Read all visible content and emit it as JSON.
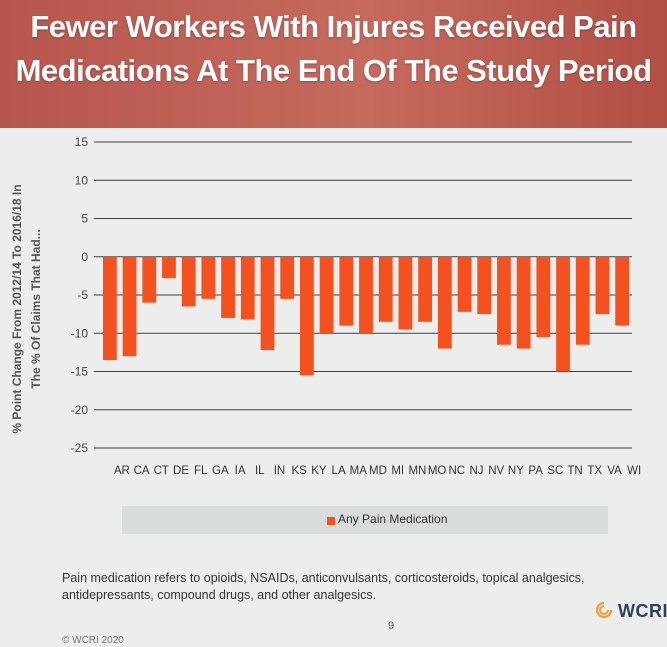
{
  "title": {
    "line1": "Fewer Workers With Injures Received Pain",
    "line2": "Medications At The End Of The Study Period"
  },
  "chart_data": {
    "type": "bar",
    "ylabel_line1": "% Point Change From 2012/14 To 2016/18 In",
    "ylabel_line2": "The % Of Claims That Had...",
    "ylim": [
      -25,
      15
    ],
    "yticks": [
      15,
      10,
      5,
      0,
      -5,
      -10,
      -15,
      -20,
      -25
    ],
    "grid": true,
    "legend_placement": "bottom",
    "categories": [
      "AR",
      "CA",
      "CT",
      "DE",
      "FL",
      "GA",
      "IA",
      "IL",
      "IN",
      "KS",
      "KY",
      "LA",
      "MA",
      "MD",
      "MI",
      "MN",
      "MO",
      "NC",
      "NJ",
      "NV",
      "NY",
      "PA",
      "SC",
      "TN",
      "TX",
      "VA",
      "WI"
    ],
    "x_tick_labels": [
      "AR",
      "CA",
      "CT",
      "DE",
      "FL",
      "GA",
      "IA",
      "IL",
      "IN",
      "KS",
      "KY",
      "LA",
      "MA",
      "MD",
      "MI",
      "MN",
      "MO",
      "NC",
      "NJ",
      "NV",
      "NY",
      "PA",
      "SC",
      "TN",
      "TX",
      "VA",
      "WI"
    ],
    "series": [
      {
        "name": "Any Pain Medication",
        "color": "#f4511e",
        "values": [
          -13.5,
          -13.0,
          -6.0,
          -2.8,
          -6.5,
          -5.5,
          -8.0,
          -8.2,
          -12.2,
          -5.5,
          -15.5,
          -10.0,
          -9.0,
          -10.0,
          -8.5,
          -9.5,
          -8.5,
          -12.0,
          -7.2,
          -7.5,
          -11.5,
          -12.0,
          -10.5,
          -15.0,
          -11.5,
          -7.5,
          -9.0
        ]
      }
    ]
  },
  "footnote": "Pain medication refers to opioids, NSAIDs, anticonvulsants, corticosteroids, topical analgesics, antidepressants, compound drugs, and other analgesics.",
  "page_number": "9",
  "copyright": "© WCRI 2020",
  "logo": {
    "text": "WCRI",
    "icon": "wcri-logo-icon",
    "color": "#2f3f5e",
    "accent": "#e8a33a"
  }
}
